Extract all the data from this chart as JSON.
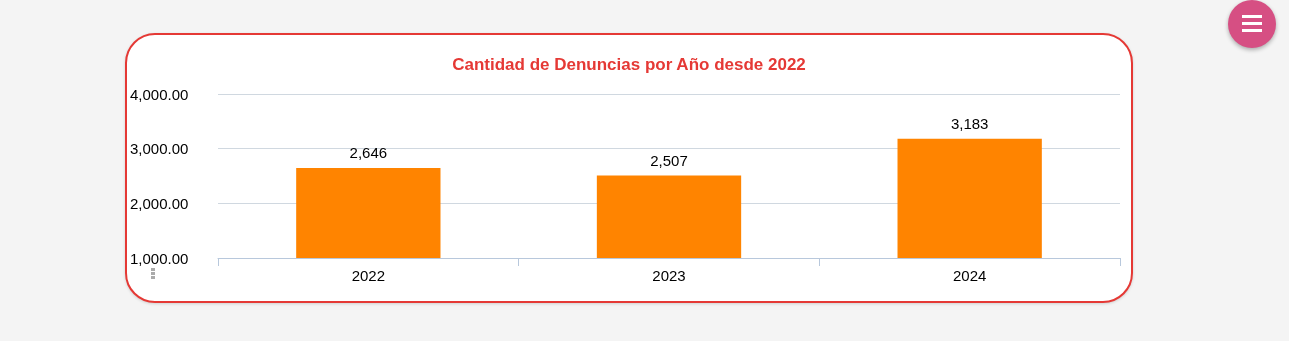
{
  "chart_data": {
    "type": "bar",
    "title": "Cantidad de Denuncias por Año desde 2022",
    "categories": [
      "2022",
      "2023",
      "2024"
    ],
    "values": [
      2646,
      2507,
      3183
    ],
    "value_labels": [
      "2,646",
      "2,507",
      "3,183"
    ],
    "color": "#ff8400",
    "ylim": [
      1000,
      4000
    ],
    "yticks": [
      {
        "value": 1000,
        "label": "1,000.00"
      },
      {
        "value": 2000,
        "label": "2,000.00"
      },
      {
        "value": 3000,
        "label": "3,000.00"
      },
      {
        "value": 4000,
        "label": "4,000.00"
      }
    ],
    "grid": "y"
  }
}
